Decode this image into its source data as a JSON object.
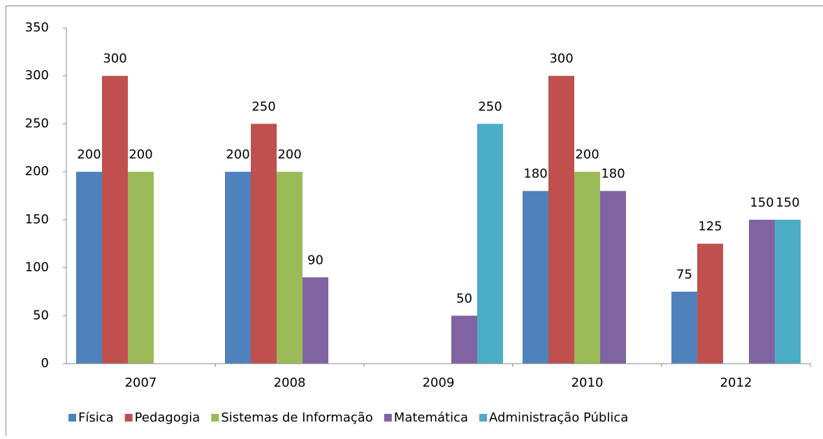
{
  "chart_data": {
    "type": "bar",
    "categories": [
      "2007",
      "2008",
      "2009",
      "2010",
      "2012"
    ],
    "series": [
      {
        "name": "Física",
        "color": "#4f81bd",
        "values": [
          200,
          200,
          null,
          180,
          75
        ]
      },
      {
        "name": "Pedagogia",
        "color": "#c0504d",
        "values": [
          300,
          250,
          null,
          300,
          125
        ]
      },
      {
        "name": "Sistemas de Informação",
        "color": "#9bbb59",
        "values": [
          200,
          200,
          null,
          200,
          null
        ]
      },
      {
        "name": "Matemática",
        "color": "#8064a2",
        "values": [
          null,
          90,
          50,
          180,
          150
        ]
      },
      {
        "name": "Administração Pública",
        "color": "#4bacc6",
        "values": [
          null,
          null,
          250,
          null,
          150
        ]
      }
    ],
    "ylim": [
      0,
      350
    ],
    "yticks": [
      0,
      50,
      100,
      150,
      200,
      250,
      300,
      350
    ],
    "legend": "bottom"
  }
}
